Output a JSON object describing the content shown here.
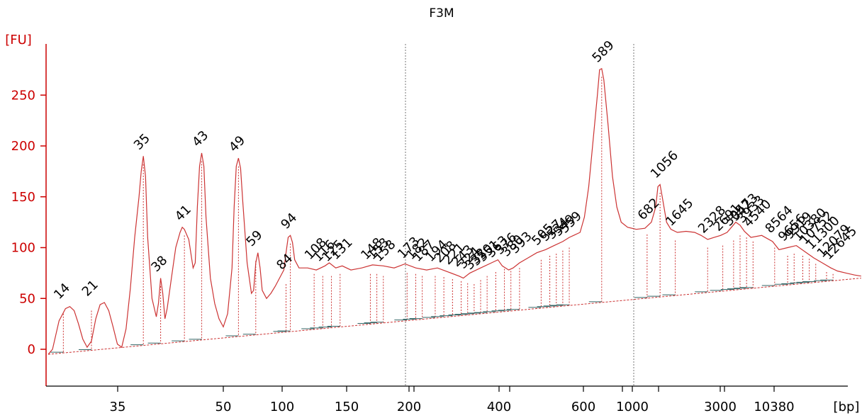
{
  "chart_data": {
    "type": "line",
    "title": "F3M",
    "ylabel": "[FU]",
    "xlabel": "[bp]",
    "ylim": [
      -35,
      300
    ],
    "yticks": [
      0,
      50,
      100,
      150,
      200,
      250
    ],
    "x_tick_labels": [
      "35",
      "50",
      "100",
      "150",
      "200",
      "400",
      "600",
      "1000",
      "3000",
      "10380"
    ],
    "marker_labels": [
      "35",
      "10380"
    ],
    "grid": false,
    "series": [
      {
        "values": [
          [
            0,
            -5
          ],
          [
            2,
            0
          ],
          [
            5,
            28
          ],
          [
            8,
            40
          ],
          [
            10,
            42
          ],
          [
            12,
            38
          ],
          [
            14,
            25
          ],
          [
            16,
            10
          ],
          [
            18,
            2
          ],
          [
            20,
            8
          ],
          [
            22,
            30
          ],
          [
            24,
            44
          ],
          [
            26,
            46
          ],
          [
            28,
            38
          ],
          [
            30,
            22
          ],
          [
            32,
            5
          ],
          [
            34,
            2
          ],
          [
            36,
            20
          ],
          [
            38,
            60
          ],
          [
            40,
            110
          ],
          [
            42,
            150
          ],
          [
            43,
            175
          ],
          [
            44,
            190
          ],
          [
            45,
            170
          ],
          [
            46,
            110
          ],
          [
            48,
            50
          ],
          [
            50,
            32
          ],
          [
            51,
            45
          ],
          [
            52,
            70
          ],
          [
            53,
            55
          ],
          [
            54,
            30
          ],
          [
            55,
            40
          ],
          [
            57,
            70
          ],
          [
            59,
            100
          ],
          [
            61,
            115
          ],
          [
            62,
            120
          ],
          [
            63,
            118
          ],
          [
            65,
            108
          ],
          [
            67,
            80
          ],
          [
            68,
            85
          ],
          [
            69,
            140
          ],
          [
            70,
            180
          ],
          [
            71,
            193
          ],
          [
            72,
            180
          ],
          [
            73,
            130
          ],
          [
            75,
            70
          ],
          [
            77,
            45
          ],
          [
            79,
            30
          ],
          [
            81,
            22
          ],
          [
            83,
            35
          ],
          [
            85,
            80
          ],
          [
            86,
            140
          ],
          [
            87,
            180
          ],
          [
            88,
            188
          ],
          [
            89,
            178
          ],
          [
            90,
            145
          ],
          [
            92,
            85
          ],
          [
            94,
            55
          ],
          [
            95,
            58
          ],
          [
            96,
            85
          ],
          [
            97,
            95
          ],
          [
            98,
            80
          ],
          [
            99,
            58
          ],
          [
            101,
            50
          ],
          [
            103,
            55
          ],
          [
            105,
            62
          ],
          [
            107,
            70
          ],
          [
            109,
            78
          ],
          [
            110,
            95
          ],
          [
            111,
            110
          ],
          [
            112,
            112
          ],
          [
            113,
            105
          ],
          [
            114,
            88
          ],
          [
            116,
            80
          ],
          [
            120,
            80
          ],
          [
            124,
            78
          ],
          [
            128,
            82
          ],
          [
            130,
            85
          ],
          [
            133,
            80
          ],
          [
            136,
            82
          ],
          [
            140,
            78
          ],
          [
            145,
            80
          ],
          [
            150,
            83
          ],
          [
            155,
            82
          ],
          [
            160,
            80
          ],
          [
            165,
            84
          ],
          [
            170,
            80
          ],
          [
            175,
            78
          ],
          [
            180,
            80
          ],
          [
            185,
            76
          ],
          [
            190,
            72
          ],
          [
            192,
            70
          ],
          [
            195,
            75
          ],
          [
            200,
            80
          ],
          [
            205,
            85
          ],
          [
            208,
            88
          ],
          [
            210,
            82
          ],
          [
            213,
            78
          ],
          [
            215,
            80
          ],
          [
            218,
            85
          ],
          [
            222,
            90
          ],
          [
            226,
            95
          ],
          [
            230,
            98
          ],
          [
            234,
            102
          ],
          [
            238,
            106
          ],
          [
            241,
            110
          ],
          [
            243,
            112
          ],
          [
            246,
            115
          ],
          [
            248,
            130
          ],
          [
            250,
            160
          ],
          [
            252,
            205
          ],
          [
            254,
            250
          ],
          [
            255,
            275
          ],
          [
            256,
            276
          ],
          [
            257,
            265
          ],
          [
            259,
            220
          ],
          [
            261,
            170
          ],
          [
            263,
            140
          ],
          [
            265,
            125
          ],
          [
            268,
            120
          ],
          [
            272,
            118
          ],
          [
            276,
            119
          ],
          [
            279,
            125
          ],
          [
            281,
            140
          ],
          [
            282,
            160
          ],
          [
            283,
            162
          ],
          [
            284,
            150
          ],
          [
            286,
            125
          ],
          [
            288,
            118
          ],
          [
            291,
            115
          ],
          [
            295,
            116
          ],
          [
            299,
            115
          ],
          [
            302,
            112
          ],
          [
            305,
            108
          ],
          [
            308,
            110
          ],
          [
            311,
            112
          ],
          [
            314,
            115
          ],
          [
            316,
            120
          ],
          [
            318,
            125
          ],
          [
            320,
            122
          ],
          [
            322,
            116
          ],
          [
            325,
            110
          ],
          [
            330,
            112
          ],
          [
            335,
            106
          ],
          [
            338,
            98
          ],
          [
            342,
            100
          ],
          [
            346,
            102
          ],
          [
            350,
            96
          ],
          [
            354,
            90
          ],
          [
            358,
            85
          ],
          [
            362,
            80
          ],
          [
            365,
            77
          ],
          [
            369,
            75
          ],
          [
            373,
            73
          ],
          [
            376,
            72
          ]
        ]
      }
    ],
    "peaks": [
      {
        "x": 7,
        "y": 43,
        "label": "14"
      },
      {
        "x": 20,
        "y": 46,
        "label": "21"
      },
      {
        "x": 44,
        "y": 190,
        "label": "35",
        "color": "#00aa00"
      },
      {
        "x": 52,
        "y": 70,
        "label": "38"
      },
      {
        "x": 63,
        "y": 120,
        "label": "41"
      },
      {
        "x": 71,
        "y": 193,
        "label": "43"
      },
      {
        "x": 88,
        "y": 188,
        "label": "49"
      },
      {
        "x": 96,
        "y": 95,
        "label": "59"
      },
      {
        "x": 110,
        "y": 72,
        "label": "84"
      },
      {
        "x": 112,
        "y": 112,
        "label": "94"
      },
      {
        "x": 123,
        "y": 82,
        "label": "108"
      },
      {
        "x": 127,
        "y": 80,
        "label": "116"
      },
      {
        "x": 131,
        "y": 80,
        "label": "125"
      },
      {
        "x": 135,
        "y": 82,
        "label": "131"
      },
      {
        "x": 149,
        "y": 82,
        "label": "148"
      },
      {
        "x": 152,
        "y": 82,
        "label": "153"
      },
      {
        "x": 155,
        "y": 80,
        "label": "158"
      },
      {
        "x": 166,
        "y": 83,
        "label": "173"
      },
      {
        "x": 170,
        "y": 82,
        "label": "182"
      },
      {
        "x": 173,
        "y": 80,
        "label": "187"
      },
      {
        "x": 179,
        "y": 80,
        "label": "194"
      },
      {
        "x": 183,
        "y": 79,
        "label": "208"
      },
      {
        "x": 187,
        "y": 77,
        "label": "221"
      },
      {
        "x": 191,
        "y": 75,
        "label": "243"
      },
      {
        "x": 194,
        "y": 73,
        "label": "324"
      },
      {
        "x": 197,
        "y": 72,
        "label": "332"
      },
      {
        "x": 200,
        "y": 76,
        "label": "350"
      },
      {
        "x": 203,
        "y": 80,
        "label": "351"
      },
      {
        "x": 207,
        "y": 84,
        "label": "363"
      },
      {
        "x": 211,
        "y": 87,
        "label": "376"
      },
      {
        "x": 214,
        "y": 85,
        "label": "380"
      },
      {
        "x": 218,
        "y": 88,
        "label": "393"
      },
      {
        "x": 228,
        "y": 96,
        "label": "505"
      },
      {
        "x": 232,
        "y": 100,
        "label": "527"
      },
      {
        "x": 235,
        "y": 102,
        "label": "534"
      },
      {
        "x": 238,
        "y": 105,
        "label": "549"
      },
      {
        "x": 241,
        "y": 108,
        "label": "559"
      },
      {
        "x": 256,
        "y": 276,
        "label": "589"
      },
      {
        "x": 277,
        "y": 121,
        "label": "682"
      },
      {
        "x": 283,
        "y": 162,
        "label": "1056"
      },
      {
        "x": 290,
        "y": 115,
        "label": "1645"
      },
      {
        "x": 305,
        "y": 108,
        "label": "2328"
      },
      {
        "x": 312,
        "y": 110,
        "label": "2691"
      },
      {
        "x": 317,
        "y": 115,
        "label": "3057"
      },
      {
        "x": 320,
        "y": 120,
        "label": "3423"
      },
      {
        "x": 323,
        "y": 118,
        "label": "3933"
      },
      {
        "x": 326,
        "y": 114,
        "label": "4540"
      },
      {
        "x": 336,
        "y": 108,
        "label": "8564"
      },
      {
        "x": 342,
        "y": 100,
        "label": "9656"
      },
      {
        "x": 345,
        "y": 102,
        "label": "9919"
      },
      {
        "x": 349,
        "y": 100,
        "label": "10380",
        "color": "#9933cc"
      },
      {
        "x": 352,
        "y": 97,
        "label": "10752"
      },
      {
        "x": 355,
        "y": 92,
        "label": "11300"
      },
      {
        "x": 360,
        "y": 84,
        "label": "12079"
      },
      {
        "x": 363,
        "y": 82,
        "label": "12645"
      }
    ]
  }
}
